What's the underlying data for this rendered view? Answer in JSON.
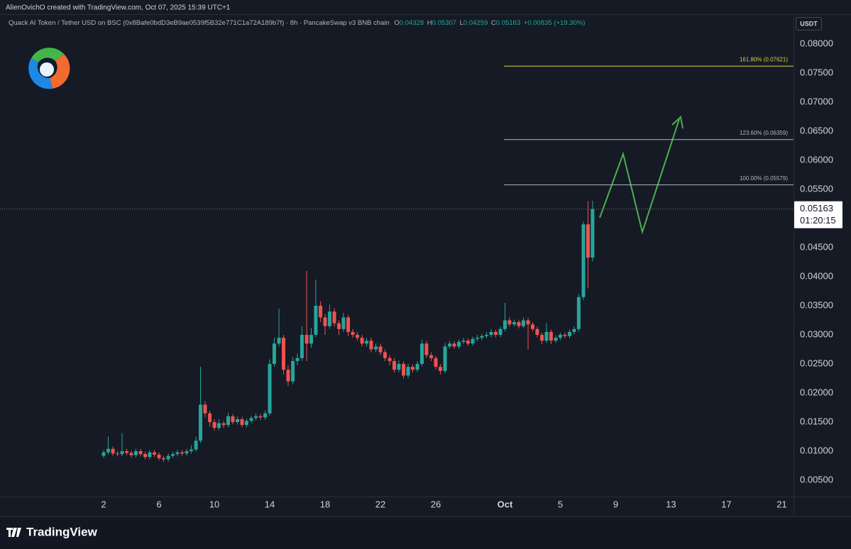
{
  "header": {
    "attribution": "AlienOvichO created with TradingView.com, Oct 07, 2025 15:39 UTC+1",
    "brand": "TradingView"
  },
  "chart_data": {
    "type": "candlestick",
    "title": "Quack AI Token / Tether USD on BSC (0x8Bafe0bdD3eB9ae0539f5B32e771C1a72A189b7f) · 8h · PancakeSwap v3 BNB chain",
    "ohlc_labels": [
      "O",
      "H",
      "L",
      "C"
    ],
    "change": "+0.00835 (+19.30%)",
    "currency": "USDT",
    "countdown": "01:20:15",
    "up_color": "#26a69a",
    "down_color": "#ef5350",
    "grid": false,
    "x": [
      2,
      2.33,
      2.67,
      3,
      3.33,
      3.67,
      4,
      4.33,
      4.67,
      5,
      5.33,
      5.67,
      6,
      6.33,
      6.67,
      7,
      7.33,
      7.67,
      8,
      8.33,
      8.67,
      9,
      9.33,
      9.67,
      10,
      10.33,
      10.67,
      11,
      11.33,
      11.67,
      12,
      12.33,
      12.67,
      13,
      13.33,
      13.67,
      14,
      14.33,
      14.67,
      15,
      15.33,
      15.67,
      16,
      16.33,
      16.67,
      17,
      17.33,
      17.67,
      18,
      18.33,
      18.67,
      19,
      19.33,
      19.67,
      20,
      20.33,
      20.67,
      21,
      21.33,
      21.67,
      22,
      22.33,
      22.67,
      23,
      23.33,
      23.67,
      24,
      24.33,
      24.67,
      25,
      25.33,
      25.67,
      26,
      26.33,
      26.67,
      27,
      27.33,
      27.67,
      28,
      28.33,
      28.67,
      29,
      29.33,
      29.67,
      30,
      30.33,
      30.67,
      31,
      31.33,
      31.67,
      32,
      32.33,
      32.67,
      33,
      33.33,
      33.67,
      34,
      34.33,
      34.67,
      35,
      35.33,
      35.67,
      36,
      36.33,
      36.67,
      37,
      37.33
    ],
    "open": [
      0.0092,
      0.0098,
      0.0104,
      0.0096,
      0.0095,
      0.01,
      0.0097,
      0.0093,
      0.01,
      0.0095,
      0.009,
      0.0098,
      0.0094,
      0.0088,
      0.0086,
      0.0092,
      0.0095,
      0.0098,
      0.0096,
      0.01,
      0.0103,
      0.0118,
      0.018,
      0.0165,
      0.015,
      0.014,
      0.0148,
      0.0145,
      0.016,
      0.015,
      0.0155,
      0.0145,
      0.0152,
      0.0157,
      0.016,
      0.0158,
      0.0165,
      0.025,
      0.0285,
      0.0295,
      0.024,
      0.022,
      0.0255,
      0.026,
      0.03,
      0.0285,
      0.03,
      0.035,
      0.033,
      0.0315,
      0.034,
      0.032,
      0.031,
      0.033,
      0.0305,
      0.03,
      0.0295,
      0.0285,
      0.029,
      0.0275,
      0.028,
      0.027,
      0.026,
      0.0255,
      0.024,
      0.025,
      0.023,
      0.0245,
      0.024,
      0.025,
      0.0285,
      0.0265,
      0.026,
      0.0245,
      0.0238,
      0.028,
      0.0285,
      0.028,
      0.0288,
      0.029,
      0.0285,
      0.0293,
      0.0295,
      0.0298,
      0.03,
      0.0305,
      0.03,
      0.031,
      0.0325,
      0.0318,
      0.0322,
      0.0315,
      0.0325,
      0.0318,
      0.031,
      0.03,
      0.029,
      0.0305,
      0.029,
      0.0295,
      0.03,
      0.0298,
      0.0305,
      0.031,
      0.0365,
      0.049,
      0.04328
    ],
    "high": [
      0.0102,
      0.0125,
      0.0108,
      0.01,
      0.0131,
      0.0104,
      0.0101,
      0.0104,
      0.0104,
      0.0099,
      0.0102,
      0.0102,
      0.0098,
      0.0092,
      0.0096,
      0.0099,
      0.0102,
      0.0102,
      0.0104,
      0.011,
      0.0125,
      0.0245,
      0.0186,
      0.017,
      0.0155,
      0.0155,
      0.0152,
      0.0166,
      0.0164,
      0.016,
      0.0159,
      0.0156,
      0.0161,
      0.0165,
      0.0164,
      0.017,
      0.0258,
      0.0295,
      0.0345,
      0.03,
      0.0248,
      0.0262,
      0.0268,
      0.0315,
      0.041,
      0.0312,
      0.0395,
      0.0358,
      0.0336,
      0.0352,
      0.0346,
      0.0325,
      0.0338,
      0.0334,
      0.031,
      0.0305,
      0.03,
      0.0295,
      0.0295,
      0.0285,
      0.0285,
      0.0275,
      0.0265,
      0.026,
      0.0256,
      0.0254,
      0.025,
      0.0249,
      0.0255,
      0.0292,
      0.029,
      0.027,
      0.0264,
      0.025,
      0.0286,
      0.029,
      0.0289,
      0.0292,
      0.0295,
      0.0294,
      0.0297,
      0.03,
      0.0302,
      0.0305,
      0.031,
      0.0309,
      0.0314,
      0.0355,
      0.033,
      0.0326,
      0.0326,
      0.033,
      0.0329,
      0.0322,
      0.0314,
      0.0304,
      0.032,
      0.0309,
      0.0299,
      0.0304,
      0.0304,
      0.0309,
      0.0315,
      0.037,
      0.0495,
      0.053,
      0.05307
    ],
    "low": [
      0.0088,
      0.0094,
      0.0092,
      0.0091,
      0.0091,
      0.0093,
      0.0089,
      0.0089,
      0.0091,
      0.0086,
      0.0086,
      0.009,
      0.0084,
      0.0082,
      0.0082,
      0.0088,
      0.0091,
      0.0092,
      0.0092,
      0.0096,
      0.0099,
      0.0114,
      0.0158,
      0.0142,
      0.0135,
      0.0136,
      0.014,
      0.0141,
      0.0146,
      0.0146,
      0.0141,
      0.0141,
      0.0148,
      0.0153,
      0.0154,
      0.0154,
      0.0161,
      0.0245,
      0.028,
      0.0232,
      0.0212,
      0.0215,
      0.0248,
      0.0255,
      0.0255,
      0.0278,
      0.0296,
      0.0322,
      0.03,
      0.031,
      0.0314,
      0.03,
      0.0305,
      0.0298,
      0.0295,
      0.029,
      0.028,
      0.028,
      0.027,
      0.027,
      0.0265,
      0.0255,
      0.0248,
      0.0235,
      0.0236,
      0.0225,
      0.0226,
      0.0235,
      0.0236,
      0.0246,
      0.026,
      0.0255,
      0.024,
      0.0232,
      0.0234,
      0.0276,
      0.0276,
      0.0276,
      0.0284,
      0.0281,
      0.0281,
      0.0289,
      0.0291,
      0.0294,
      0.0296,
      0.0296,
      0.0296,
      0.0306,
      0.0314,
      0.0314,
      0.0311,
      0.0311,
      0.0275,
      0.0306,
      0.0296,
      0.0284,
      0.0286,
      0.0284,
      0.0286,
      0.0291,
      0.0294,
      0.0294,
      0.0301,
      0.0306,
      0.036,
      0.038,
      0.04259
    ],
    "close": [
      0.0098,
      0.0104,
      0.0096,
      0.0095,
      0.01,
      0.0097,
      0.0093,
      0.01,
      0.0095,
      0.009,
      0.0098,
      0.0094,
      0.0088,
      0.0086,
      0.0092,
      0.0095,
      0.0098,
      0.0096,
      0.01,
      0.0103,
      0.0118,
      0.018,
      0.0165,
      0.015,
      0.014,
      0.0148,
      0.0145,
      0.016,
      0.015,
      0.0155,
      0.0145,
      0.0152,
      0.0157,
      0.016,
      0.0158,
      0.0165,
      0.025,
      0.0285,
      0.0295,
      0.024,
      0.022,
      0.0255,
      0.026,
      0.03,
      0.0285,
      0.03,
      0.035,
      0.033,
      0.0315,
      0.034,
      0.032,
      0.031,
      0.033,
      0.0305,
      0.03,
      0.0295,
      0.0285,
      0.029,
      0.0275,
      0.028,
      0.027,
      0.026,
      0.0255,
      0.024,
      0.025,
      0.023,
      0.0245,
      0.024,
      0.025,
      0.0285,
      0.0265,
      0.026,
      0.0245,
      0.0238,
      0.028,
      0.0285,
      0.028,
      0.0288,
      0.029,
      0.0285,
      0.0293,
      0.0295,
      0.0298,
      0.03,
      0.0305,
      0.03,
      0.031,
      0.0325,
      0.0318,
      0.0322,
      0.0315,
      0.0325,
      0.0318,
      0.031,
      0.03,
      0.029,
      0.0305,
      0.029,
      0.0295,
      0.03,
      0.0298,
      0.0305,
      0.031,
      0.0365,
      0.049,
      0.04328,
      0.05163
    ],
    "fib_levels": [
      {
        "label": "161.80% (0.07621)",
        "value": 0.07621,
        "color": "#d8d43c"
      },
      {
        "label": "123.60% (0.06359)",
        "value": 0.06359,
        "color": "#b2b5be"
      },
      {
        "label": "100.00% (0.05579)",
        "value": 0.05579,
        "color": "#b2b5be"
      }
    ],
    "xlim": [
      -5.49,
      51.85
    ],
    "xticks": [
      2,
      6,
      10,
      14,
      18,
      22,
      26,
      {
        "value": 31,
        "label": "Oct"
      },
      {
        "value": 35,
        "label": "5"
      },
      {
        "value": 39,
        "label": "9"
      },
      {
        "value": 43,
        "label": "13"
      },
      {
        "value": 47,
        "label": "17"
      },
      {
        "value": 51,
        "label": "21"
      }
    ],
    "ylim": [
      0.0022,
      0.0849
    ],
    "yticks": [
      {
        "value": 0.005,
        "label": "0.00500"
      },
      {
        "value": 0.01,
        "label": "0.01000"
      },
      {
        "value": 0.015,
        "label": "0.01500"
      },
      {
        "value": 0.02,
        "label": "0.02000"
      },
      {
        "value": 0.025,
        "label": "0.02500"
      },
      {
        "value": 0.03,
        "label": "0.03000"
      },
      {
        "value": 0.035,
        "label": "0.03500"
      },
      {
        "value": 0.04,
        "label": "0.04000"
      },
      {
        "value": 0.045,
        "label": "0.04500"
      },
      {
        "value": 0.05,
        "label": "0.05000"
      },
      {
        "value": 0.055,
        "label": "0.05500"
      },
      {
        "value": 0.06,
        "label": "0.06000"
      },
      {
        "value": 0.065,
        "label": "0.06500"
      },
      {
        "value": 0.07,
        "label": "0.07000"
      },
      {
        "value": 0.075,
        "label": "0.07500"
      },
      {
        "value": 0.08,
        "label": "0.08000"
      }
    ]
  }
}
